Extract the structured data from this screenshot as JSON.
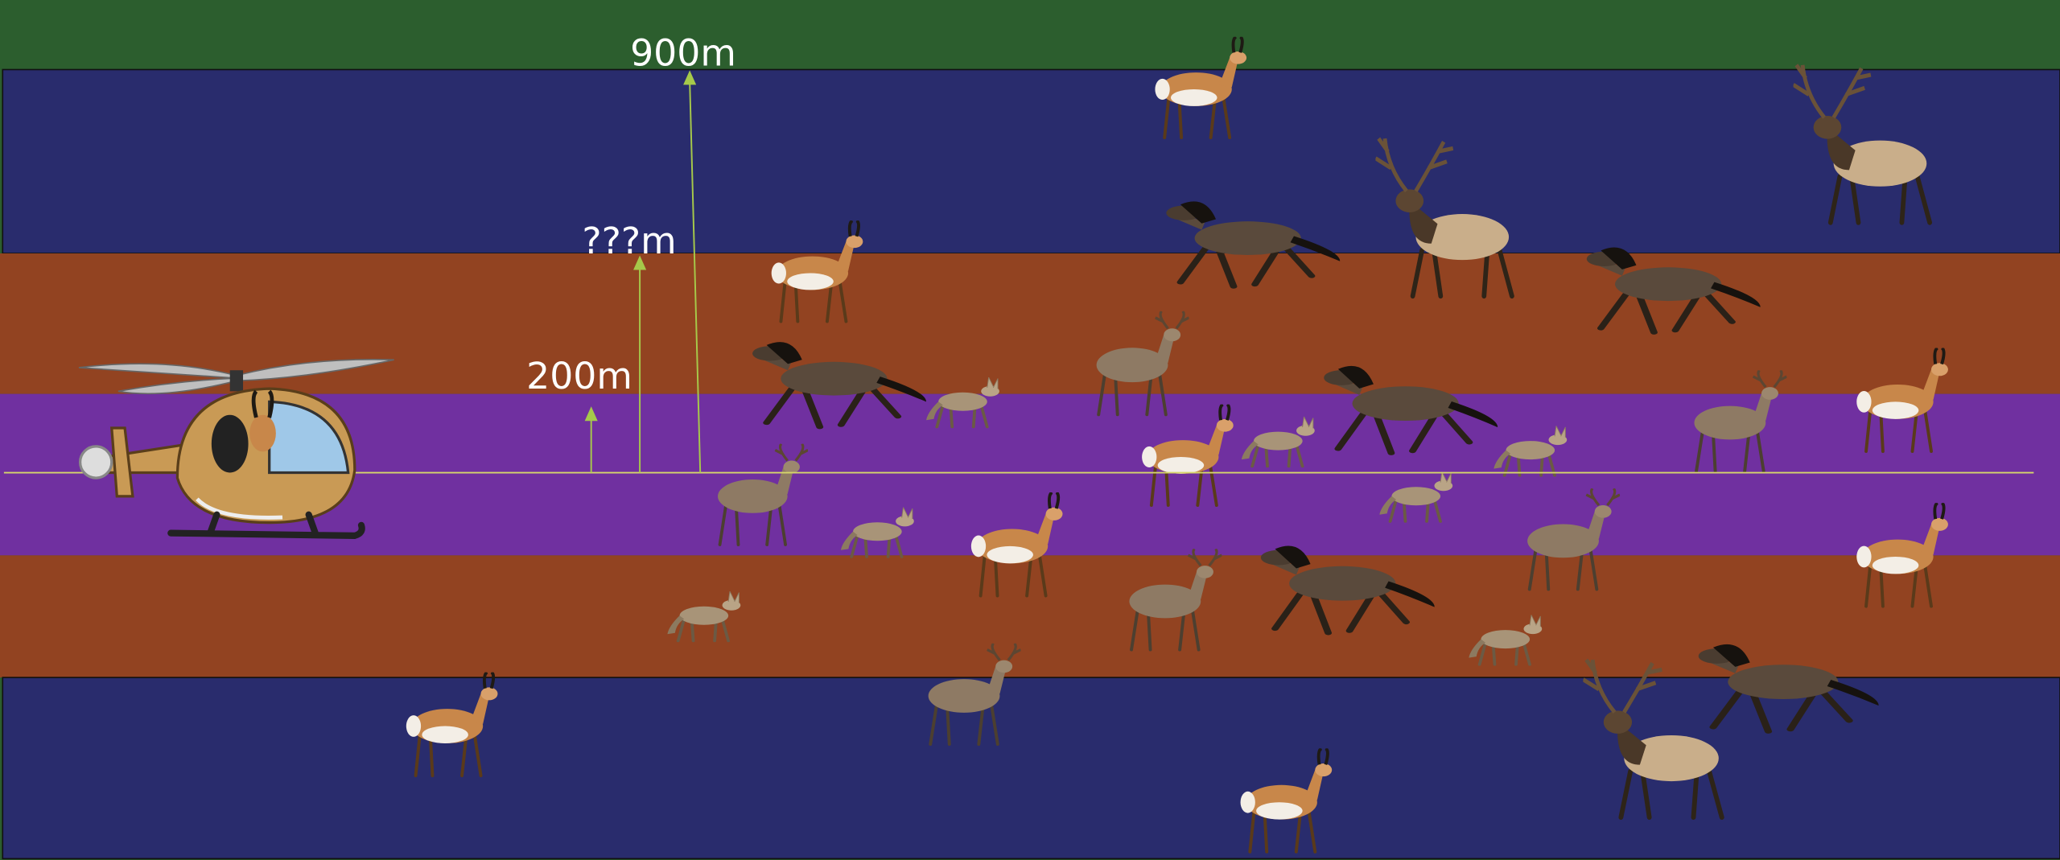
{
  "labels": {
    "high": "900m",
    "unknown": "???m",
    "low": "200m"
  }
}
